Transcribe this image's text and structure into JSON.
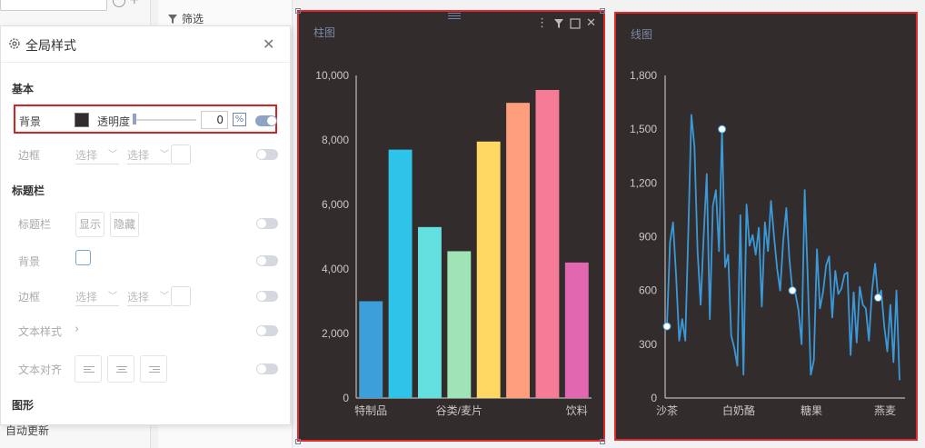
{
  "sidebar": {
    "footer_label": "自动更新"
  },
  "filter_pane": {
    "label": "筛选"
  },
  "panel": {
    "title": "全局样式",
    "sections": {
      "basic": "基本",
      "title_bar": "标题栏",
      "shape": "图形"
    },
    "basic": {
      "background_label": "背景",
      "background_color": "#332c2c",
      "opacity_label": "透明度",
      "opacity_value": "0",
      "percent_label": "%",
      "border_label": "边框",
      "select_placeholder_1": "选择",
      "select_placeholder_2": "选择"
    },
    "title_bar": {
      "title_bar_label": "标题栏",
      "show_label": "显示",
      "hide_label": "隐藏",
      "background_label": "背景",
      "border_label": "边框",
      "select_placeholder_1": "选择",
      "select_placeholder_2": "选择",
      "text_style_label": "文本样式",
      "text_align_label": "文本对齐"
    }
  },
  "colors": {
    "card_bg": "#332c2c",
    "highlight": "#d32424",
    "accent": "#8fa3c6",
    "line": "#3a9ad9"
  },
  "chart_data": [
    {
      "type": "bar",
      "title": "柱图",
      "categories": [
        "特制品",
        "",
        "",
        "谷类/麦片",
        "",
        "",
        "",
        "饮料"
      ],
      "values": [
        3000,
        7700,
        5300,
        4550,
        7950,
        9150,
        9550,
        4200
      ],
      "colors": [
        "#3d9fd9",
        "#2ec4ea",
        "#63dfe0",
        "#9fe3b6",
        "#ffd863",
        "#ff9e7c",
        "#f67b97",
        "#e267b1"
      ],
      "ylim": [
        0,
        10000
      ],
      "yticks": [
        "0",
        "2,000",
        "4,000",
        "6,000",
        "8,000",
        "10,000"
      ],
      "grid": false
    },
    {
      "type": "line",
      "title": "线图",
      "xticks": [
        "沙茶",
        "白奶酪",
        "糖果",
        "燕麦"
      ],
      "ylim": [
        0,
        1800
      ],
      "yticks": [
        "0",
        "300",
        "600",
        "900",
        "1,200",
        "1,500",
        "1,800"
      ],
      "series": [
        {
          "values": [
            400,
            870,
            980,
            680,
            320,
            440,
            320,
            940,
            1580,
            1400,
            820,
            520,
            900,
            1250,
            440,
            1070,
            1160,
            820,
            1500,
            730,
            800,
            350,
            280,
            180,
            1020,
            130,
            1080,
            850,
            910,
            800,
            950,
            510,
            980,
            820,
            1100,
            900,
            720,
            600,
            880,
            1060,
            780,
            600,
            580,
            490,
            300,
            1160,
            680,
            130,
            210,
            830,
            500,
            590,
            740,
            790,
            450,
            710,
            580,
            610,
            690,
            700,
            240,
            590,
            310,
            620,
            520,
            500,
            320,
            600,
            750,
            560,
            600,
            400,
            260,
            520,
            200,
            600,
            100
          ],
          "markers": [
            0,
            18,
            41,
            69
          ]
        }
      ],
      "grid": false
    }
  ]
}
